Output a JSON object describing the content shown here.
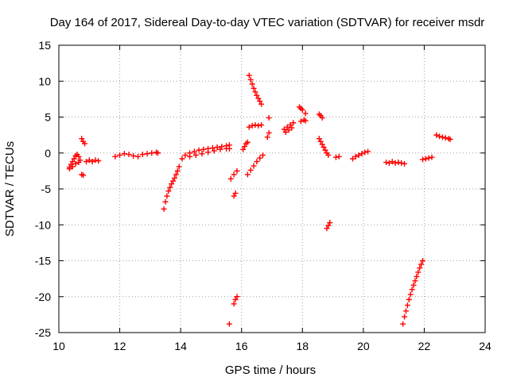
{
  "chart_data": {
    "type": "scatter",
    "title": "Day 164 of 2017, Sidereal Day-to-day VTEC variation (SDTVAR) for receiver msdr",
    "xlabel": "GPS time / hours",
    "ylabel": "SDTVAR / TECUs",
    "xlim": [
      10,
      24
    ],
    "ylim": [
      -25,
      15
    ],
    "xticks": [
      10,
      12,
      14,
      16,
      18,
      20,
      22,
      24
    ],
    "yticks": [
      -25,
      -20,
      -15,
      -10,
      -5,
      0,
      5,
      10,
      15
    ],
    "grid": true,
    "marker": "+",
    "color": "#ff0000",
    "series": [
      {
        "x": [
          10.35,
          10.4,
          10.45,
          10.5,
          10.55,
          10.6,
          10.65,
          10.7
        ],
        "y": [
          -2.0,
          -1.6,
          -1.2,
          -0.8,
          -0.4,
          -0.2,
          -0.5,
          -1.0
        ]
      },
      {
        "x": [
          10.35,
          10.45,
          10.55,
          10.65
        ],
        "y": [
          -2.2,
          -1.9,
          -1.5,
          -1.3
        ]
      },
      {
        "x": [
          10.75,
          10.8
        ],
        "y": [
          -3.0,
          -3.1
        ]
      },
      {
        "x": [
          10.75,
          10.8,
          10.85
        ],
        "y": [
          2.0,
          1.6,
          1.3
        ]
      },
      {
        "x": [
          10.9,
          11.0,
          11.1,
          11.2,
          11.3
        ],
        "y": [
          -1.2,
          -1.0,
          -1.2,
          -1.0,
          -1.1
        ]
      },
      {
        "x": [
          11.85,
          12.0,
          12.15,
          12.3,
          12.45,
          12.6,
          12.75,
          12.9,
          13.05,
          13.2,
          13.25
        ],
        "y": [
          -0.5,
          -0.3,
          -0.1,
          -0.2,
          -0.4,
          -0.5,
          -0.2,
          -0.1,
          0.0,
          0.1,
          0.0
        ]
      },
      {
        "x": [
          13.45,
          13.5,
          13.55,
          13.6,
          13.65,
          13.7,
          13.75,
          13.8,
          13.85,
          13.9,
          13.95
        ],
        "y": [
          -7.8,
          -6.8,
          -6.0,
          -5.3,
          -4.8,
          -4.3,
          -3.9,
          -3.5,
          -3.0,
          -2.5,
          -1.9
        ]
      },
      {
        "x": [
          14.05,
          14.15,
          14.3,
          14.45,
          14.6,
          14.75,
          14.9,
          15.05,
          15.2,
          15.35,
          15.5,
          15.6
        ],
        "y": [
          -0.8,
          -0.3,
          0.0,
          0.2,
          0.4,
          0.5,
          0.6,
          0.7,
          0.8,
          0.9,
          1.0,
          1.1
        ]
      },
      {
        "x": [
          14.3,
          14.5,
          14.7,
          14.9,
          15.1,
          15.3,
          15.5,
          15.6
        ],
        "y": [
          -0.5,
          -0.3,
          -0.1,
          0.1,
          0.3,
          0.5,
          0.6,
          0.6
        ]
      },
      {
        "x": [
          15.65,
          15.75,
          15.85
        ],
        "y": [
          -3.6,
          -3.0,
          -2.5
        ]
      },
      {
        "x": [
          15.75,
          15.8
        ],
        "y": [
          -6.0,
          -5.6
        ]
      },
      {
        "x": [
          15.75,
          15.8,
          15.85
        ],
        "y": [
          -21.0,
          -20.4,
          -20.0
        ]
      },
      {
        "x": [
          15.6
        ],
        "y": [
          -23.8
        ]
      },
      {
        "x": [
          16.05,
          16.1,
          16.15,
          16.2
        ],
        "y": [
          0.5,
          0.9,
          1.3,
          1.5
        ]
      },
      {
        "x": [
          16.2,
          16.3,
          16.4,
          16.5,
          16.6,
          16.7
        ],
        "y": [
          -3.0,
          -2.4,
          -1.8,
          -1.2,
          -0.7,
          -0.3
        ]
      },
      {
        "x": [
          16.25,
          16.35,
          16.45,
          16.55,
          16.65
        ],
        "y": [
          3.6,
          3.8,
          3.9,
          3.8,
          3.9
        ]
      },
      {
        "x": [
          16.25,
          16.3,
          16.35,
          16.4,
          16.45,
          16.5,
          16.55,
          16.6,
          16.65
        ],
        "y": [
          10.8,
          10.2,
          9.6,
          9.0,
          8.5,
          8.0,
          7.6,
          7.2,
          6.8
        ]
      },
      {
        "x": [
          16.85,
          16.9
        ],
        "y": [
          2.2,
          2.8
        ]
      },
      {
        "x": [
          16.9
        ],
        "y": [
          4.9
        ]
      },
      {
        "x": [
          17.4,
          17.5,
          17.6,
          17.7
        ],
        "y": [
          3.3,
          3.6,
          3.9,
          4.2
        ]
      },
      {
        "x": [
          17.45,
          17.55,
          17.65
        ],
        "y": [
          2.9,
          3.2,
          3.5
        ]
      },
      {
        "x": [
          17.95,
          18.05,
          18.1
        ],
        "y": [
          4.4,
          4.6,
          4.5
        ]
      },
      {
        "x": [
          17.9,
          17.95,
          18.0,
          18.1
        ],
        "y": [
          6.4,
          6.2,
          6.0,
          5.5
        ]
      },
      {
        "x": [
          18.55,
          18.6,
          18.65
        ],
        "y": [
          5.4,
          5.2,
          4.9
        ]
      },
      {
        "x": [
          18.55,
          18.6,
          18.65,
          18.7,
          18.75,
          18.8,
          18.85
        ],
        "y": [
          2.0,
          1.6,
          1.2,
          0.8,
          0.4,
          0.0,
          -0.3
        ]
      },
      {
        "x": [
          18.8,
          18.85,
          18.9
        ],
        "y": [
          -10.5,
          -10.1,
          -9.7
        ]
      },
      {
        "x": [
          19.1,
          19.2
        ],
        "y": [
          -0.6,
          -0.5
        ]
      },
      {
        "x": [
          19.65,
          19.75,
          19.85,
          19.95,
          20.05,
          20.15
        ],
        "y": [
          -0.8,
          -0.5,
          -0.3,
          -0.1,
          0.1,
          0.2
        ]
      },
      {
        "x": [
          20.75,
          20.85,
          20.95,
          21.05,
          21.15,
          21.25,
          21.35
        ],
        "y": [
          -1.3,
          -1.4,
          -1.2,
          -1.4,
          -1.3,
          -1.4,
          -1.5
        ]
      },
      {
        "x": [
          21.3,
          21.35,
          21.4,
          21.45,
          21.5,
          21.55,
          21.6,
          21.65,
          21.7,
          21.75,
          21.8,
          21.85,
          21.9,
          21.95
        ],
        "y": [
          -23.8,
          -22.8,
          -22.0,
          -21.2,
          -20.4,
          -19.7,
          -19.0,
          -18.4,
          -17.8,
          -17.2,
          -16.6,
          -16.0,
          -15.5,
          -15.0
        ]
      },
      {
        "x": [
          21.95,
          22.05,
          22.15,
          22.25
        ],
        "y": [
          -0.9,
          -0.8,
          -0.7,
          -0.6
        ]
      },
      {
        "x": [
          22.4,
          22.5,
          22.6,
          22.7,
          22.8,
          22.85
        ],
        "y": [
          2.5,
          2.3,
          2.2,
          2.1,
          2.0,
          1.9
        ]
      }
    ]
  }
}
